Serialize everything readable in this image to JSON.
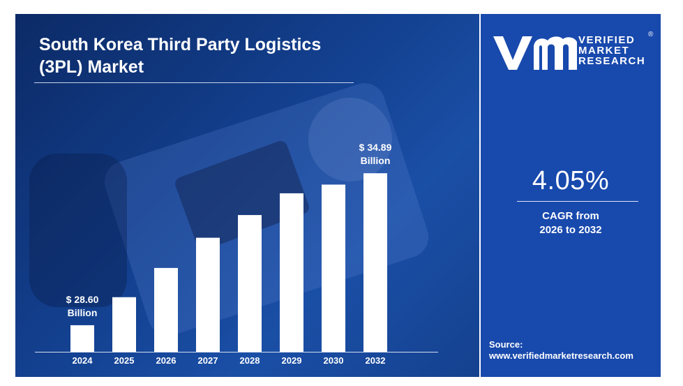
{
  "title_line1": "South Korea Third Party Logistics",
  "title_line2": "(3PL) Market",
  "brand": {
    "line1": "VERIFIED",
    "line2": "MARKET",
    "line3": "RESEARCH",
    "registered": "®"
  },
  "cagr": {
    "value": "4.05%",
    "label_line1": "CAGR from",
    "label_line2": "2026 to 2032"
  },
  "source": {
    "label": "Source:",
    "url": "www.verifiedmarketresearch.com"
  },
  "colors": {
    "panel_dark": "#0c2a66",
    "side_panel": "#1849ad",
    "bar": "#ffffff",
    "text": "#ffffff"
  },
  "chart_data": {
    "type": "bar",
    "categories": [
      "2024",
      "2025",
      "2026",
      "2027",
      "2028",
      "2029",
      "2030",
      "2032"
    ],
    "values": [
      28.6,
      29.76,
      30.97,
      32.22,
      33.16,
      34.06,
      34.42,
      34.89
    ],
    "annotations": [
      {
        "category": "2024",
        "line1": "$ 28.60",
        "line2": "Billion"
      },
      {
        "category": "2032",
        "line1": "$ 34.89",
        "line2": "Billion"
      }
    ],
    "title": "South Korea Third Party Logistics (3PL) Market",
    "xlabel": "",
    "ylabel": "",
    "ylim": [
      27.5,
      35.3
    ],
    "grid": false,
    "legend": "none"
  }
}
